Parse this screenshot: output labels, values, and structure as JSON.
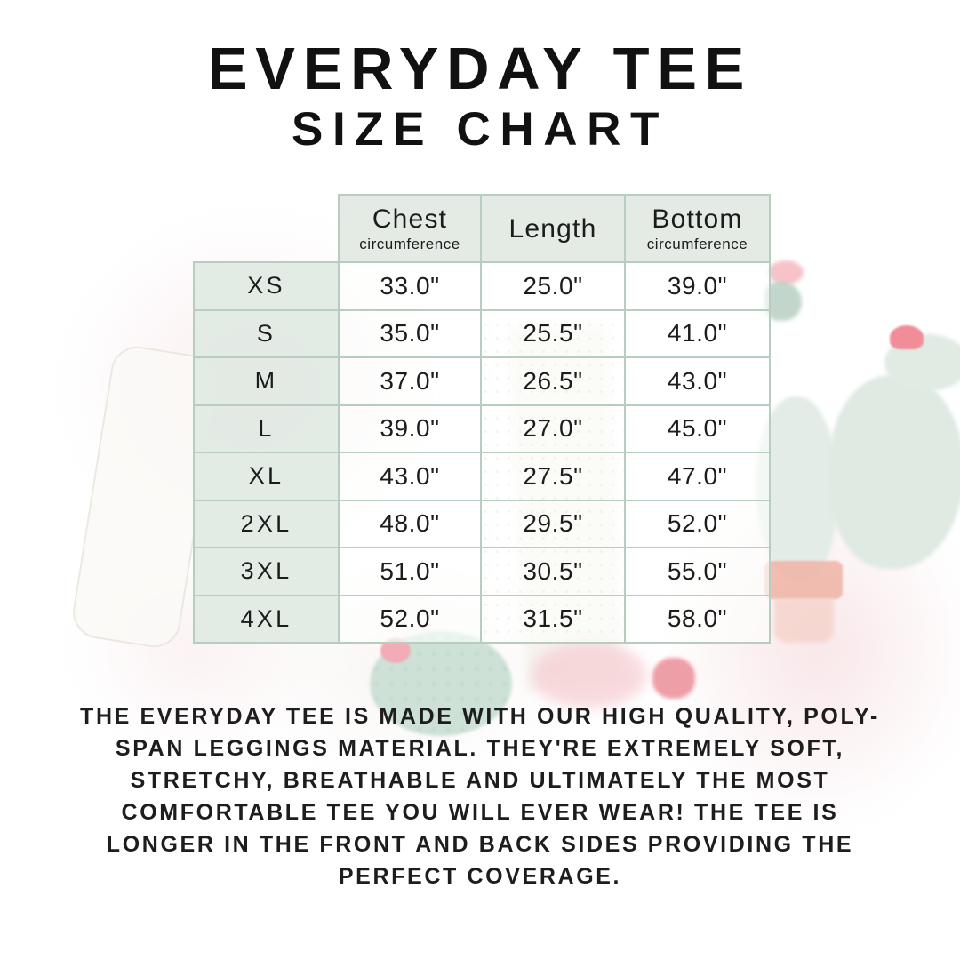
{
  "chart_data": {
    "type": "table",
    "title_line1": "EVERYDAY TEE",
    "title_line2": "SIZE CHART",
    "columns": [
      {
        "label": "Chest",
        "sublabel": "circumference"
      },
      {
        "label": "Length",
        "sublabel": ""
      },
      {
        "label": "Bottom",
        "sublabel": "circumference"
      }
    ],
    "rows": [
      {
        "size": "XS",
        "chest": "33.0\"",
        "length": "25.0\"",
        "bottom": "39.0\""
      },
      {
        "size": "S",
        "chest": "35.0\"",
        "length": "25.5\"",
        "bottom": "41.0\""
      },
      {
        "size": "M",
        "chest": "37.0\"",
        "length": "26.5\"",
        "bottom": "43.0\""
      },
      {
        "size": "L",
        "chest": "39.0\"",
        "length": "27.0\"",
        "bottom": "45.0\""
      },
      {
        "size": "XL",
        "chest": "43.0\"",
        "length": "27.5\"",
        "bottom": "47.0\""
      },
      {
        "size": "2XL",
        "chest": "48.0\"",
        "length": "29.5\"",
        "bottom": "52.0\""
      },
      {
        "size": "3XL",
        "chest": "51.0\"",
        "length": "30.5\"",
        "bottom": "55.0\""
      },
      {
        "size": "4XL",
        "chest": "52.0\"",
        "length": "31.5\"",
        "bottom": "58.0\""
      }
    ],
    "units": "inches",
    "layout": {
      "grid": true,
      "legend": "none"
    }
  },
  "description": "THE EVERYDAY TEE IS MADE WITH OUR HIGH QUALITY, POLY-SPAN LEGGINGS MATERIAL. THEY'RE EXTREMELY SOFT, STRETCHY, BREATHABLE AND ULTIMATELY THE MOST COMFORTABLE TEE YOU WILL EVER WEAR! THE TEE IS LONGER IN THE FRONT AND BACK SIDES PROVIDING THE PERFECT COVERAGE.",
  "colors": {
    "table_border": "#b6cdc0",
    "header_cell_bg": "#e1eae3",
    "text": "#1c1c1c",
    "watercolor_pink": "#f6e2e5",
    "watercolor_green": "#dfeae3",
    "flower_pink": "#f08d97",
    "pot_terracotta": "#efb4a5"
  }
}
